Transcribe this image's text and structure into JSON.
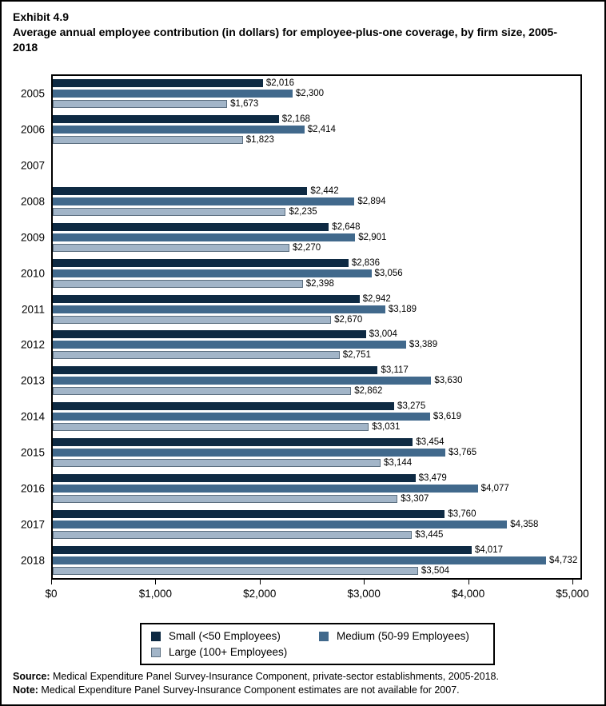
{
  "figure": {
    "exhibit_label": "Exhibit 4.9",
    "title": "Average annual employee contribution (in dollars) for employee-plus-one coverage, by firm size, 2005-2018"
  },
  "chart_data": {
    "type": "bar",
    "orientation": "horizontal",
    "title": "Average annual employee contribution (in dollars) for employee-plus-one coverage, by firm size, 2005-2018",
    "categories": [
      "2005",
      "2006",
      "2007",
      "2008",
      "2009",
      "2010",
      "2011",
      "2012",
      "2013",
      "2014",
      "2015",
      "2016",
      "2017",
      "2018"
    ],
    "series": [
      {
        "name": "Small (<50 Employees)",
        "color": "#0e2a43",
        "border_color": "#0e2a43",
        "values": [
          2016,
          2168,
          null,
          2442,
          2648,
          2836,
          2942,
          3004,
          3117,
          3275,
          3454,
          3479,
          3760,
          4017
        ]
      },
      {
        "name": "Medium (50-99 Employees)",
        "color": "#41698c",
        "border_color": "#41698c",
        "values": [
          2300,
          2414,
          null,
          2894,
          2901,
          3056,
          3189,
          3389,
          3630,
          3619,
          3765,
          4077,
          4358,
          4732
        ]
      },
      {
        "name": "Large (100+ Employees)",
        "color": "#a2b5c8",
        "border_color": "#5c6f80",
        "values": [
          1673,
          1823,
          null,
          2235,
          2270,
          2398,
          2670,
          2751,
          2862,
          3031,
          3144,
          3307,
          3445,
          3504
        ]
      }
    ],
    "xlim": [
      0,
      5000
    ],
    "x_tick_values": [
      0,
      1000,
      2000,
      3000,
      4000,
      5000
    ],
    "x_tick_labels": [
      "$0",
      "$1,000",
      "$2,000",
      "$3,000",
      "$4,000",
      "$5,000"
    ],
    "value_prefix": "$",
    "grid": false,
    "legend_position": "bottom",
    "missing_data_note_year": "2007"
  },
  "footnotes": {
    "source_label": "Source:",
    "source_text": " Medical Expenditure Panel Survey-Insurance Component, private-sector establishments, 2005-2018.",
    "note_label": "Note:",
    "note_text": " Medical Expenditure Panel Survey-Insurance Component estimates are not available for 2007."
  }
}
